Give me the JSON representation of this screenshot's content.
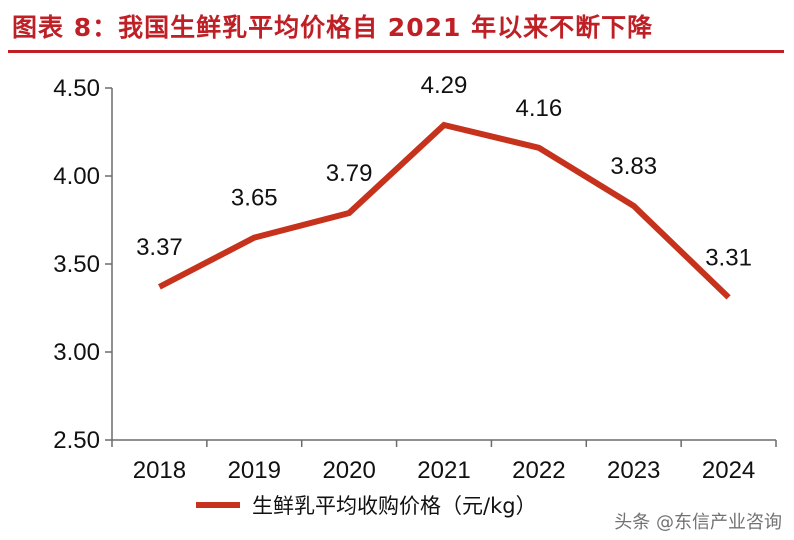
{
  "title": "图表 8：我国生鲜乳平均价格自 2021 年以来不断下降",
  "chart_data": {
    "type": "line",
    "title": "图表 8：我国生鲜乳平均价格自 2021 年以来不断下降",
    "categories": [
      "2018",
      "2019",
      "2020",
      "2021",
      "2022",
      "2023",
      "2024"
    ],
    "series": [
      {
        "name": "生鲜乳平均收购价格（元/kg）",
        "values": [
          3.37,
          3.65,
          3.79,
          4.29,
          4.16,
          3.83,
          3.31
        ],
        "labels": [
          "3.37",
          "3.65",
          "3.79",
          "4.29",
          "4.16",
          "3.83",
          "3.31"
        ],
        "color": "#c6321b"
      }
    ],
    "yticks": [
      "4.50",
      "4.00",
      "3.50",
      "3.00",
      "2.50"
    ],
    "ylim": [
      2.5,
      4.5
    ],
    "xlabel": "",
    "ylabel": "",
    "grid": false,
    "legend_position": "bottom"
  },
  "legend": {
    "label": "生鲜乳平均收购价格（元/kg）"
  },
  "watermark": "头条 @东信产业咨询"
}
